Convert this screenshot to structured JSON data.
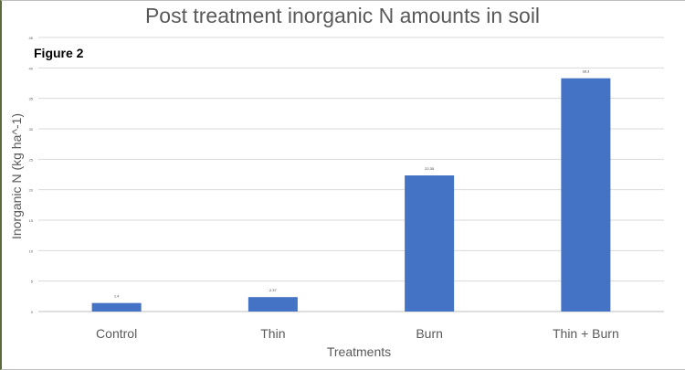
{
  "chart_data": {
    "type": "bar",
    "title": "Post treatment inorganic N amounts in soil",
    "annotation": "Figure 2",
    "xlabel": "Treatments",
    "ylabel": "Inorganic N (kg ha^-1)",
    "categories": [
      "Control",
      "Thin",
      "Burn",
      "Thin + Burn"
    ],
    "values": [
      1.4,
      2.37,
      22.35,
      38.3
    ],
    "value_labels": [
      "1.4",
      "2.37",
      "22.35",
      "38.3"
    ],
    "ylim": [
      0,
      45
    ],
    "yticks": [
      0,
      5,
      10,
      15,
      20,
      25,
      30,
      35,
      40,
      45
    ],
    "grid": true,
    "bar_color": "#4472c4",
    "grid_color": "#d9d9d9"
  }
}
